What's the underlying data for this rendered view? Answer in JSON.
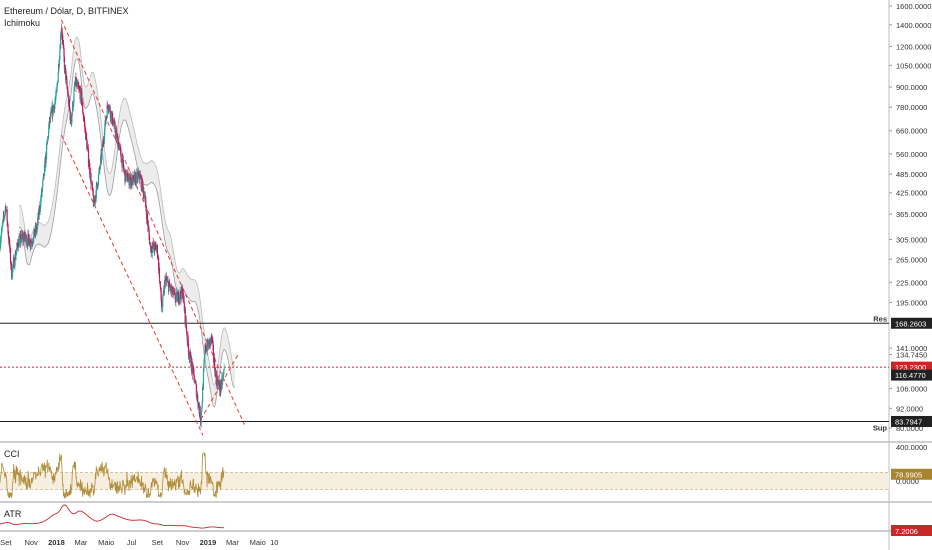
{
  "header": {
    "title": "Ethereum / Dólar, D, BITFINEX",
    "indicator": "Ichimoku"
  },
  "cci_panel": {
    "label": "CCI",
    "value_tag": "78.9905"
  },
  "atr_panel": {
    "label": "ATR",
    "value_tag": "7.2006"
  },
  "colors": {
    "up": "#26a69a",
    "down": "#c2185b",
    "cloud": "#ececec",
    "trend": "#e53935",
    "cci_line": "#b08d3a",
    "cci_band": "#f6eedf",
    "atr_line": "#c62828"
  },
  "chart_data": {
    "type": "candlestick",
    "y_scale": "log",
    "ylim": [
      76,
      1600
    ],
    "y_ticks": [
      "1600.0000",
      "1400.0000",
      "1200.0000",
      "1050.0000",
      "900.0000",
      "780.0000",
      "660.0000",
      "560.0000",
      "485.0000",
      "425.0000",
      "365.0000",
      "305.0000",
      "265.0000",
      "225.0000",
      "195.0000",
      "141.0000",
      "134.7450",
      "106.0000",
      "92.0000",
      "80.0000"
    ],
    "x_labels": [
      "Set",
      "Nov",
      "2018",
      "Mar",
      "Maio",
      "Jul",
      "Set",
      "Nov",
      "2019",
      "Mar",
      "Maio",
      "10"
    ],
    "price_path": [
      [
        "2017-08-18",
        300
      ],
      [
        "2017-09-01",
        390
      ],
      [
        "2017-09-15",
        240
      ],
      [
        "2017-10-01",
        300
      ],
      [
        "2017-10-15",
        310
      ],
      [
        "2017-11-01",
        300
      ],
      [
        "2017-11-15",
        330
      ],
      [
        "2017-12-01",
        470
      ],
      [
        "2017-12-15",
        700
      ],
      [
        "2018-01-01",
        850
      ],
      [
        "2018-01-13",
        1400
      ],
      [
        "2018-01-20",
        1050
      ],
      [
        "2018-02-05",
        700
      ],
      [
        "2018-02-15",
        930
      ],
      [
        "2018-03-01",
        850
      ],
      [
        "2018-03-15",
        600
      ],
      [
        "2018-04-01",
        390
      ],
      [
        "2018-04-15",
        500
      ],
      [
        "2018-05-05",
        810
      ],
      [
        "2018-05-20",
        680
      ],
      [
        "2018-06-01",
        590
      ],
      [
        "2018-06-15",
        480
      ],
      [
        "2018-07-01",
        460
      ],
      [
        "2018-07-20",
        480
      ],
      [
        "2018-08-01",
        420
      ],
      [
        "2018-08-15",
        290
      ],
      [
        "2018-09-01",
        285
      ],
      [
        "2018-09-12",
        185
      ],
      [
        "2018-09-20",
        230
      ],
      [
        "2018-10-15",
        200
      ],
      [
        "2018-11-01",
        210
      ],
      [
        "2018-11-15",
        140
      ],
      [
        "2018-12-01",
        110
      ],
      [
        "2018-12-15",
        85
      ],
      [
        "2018-12-25",
        140
      ],
      [
        "2019-01-10",
        150
      ],
      [
        "2019-01-20",
        115
      ],
      [
        "2019-02-01",
        105
      ],
      [
        "2019-02-10",
        123
      ]
    ],
    "horizontal_levels": [
      {
        "label": "Res",
        "value": 168.2603,
        "tag": "168.2603"
      },
      {
        "label": "",
        "value": 123.23,
        "tag": "123.2300",
        "style": "dotted"
      },
      {
        "label": "",
        "value": 116.477,
        "tag": "116.4770"
      },
      {
        "label": "Sup",
        "value": 83.7947,
        "tag": "83.7947"
      }
    ],
    "price_tags": [
      "168.2603",
      "123.2300",
      "116.4770",
      "83.7947"
    ],
    "cci": {
      "ylim": [
        -250,
        450
      ],
      "ticks": [
        "400.0000",
        "0.0000"
      ],
      "last": 78.9905
    },
    "atr": {
      "last": 7.2006
    }
  }
}
